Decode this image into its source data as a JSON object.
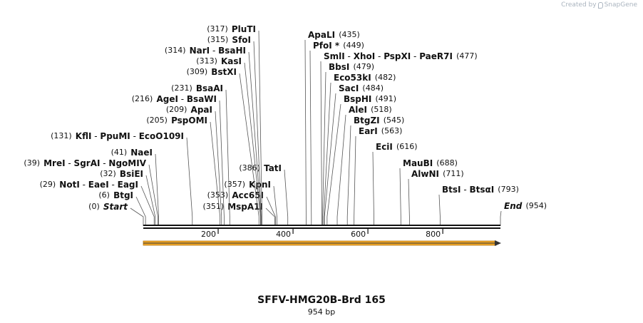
{
  "credit": {
    "prefix": "Created by",
    "brand": "SnapGene"
  },
  "map": {
    "title": "SFFV-HMG20B-Brd 165",
    "length_label": "954 bp",
    "length_bp": 954,
    "ticks": [
      200,
      400,
      600,
      800
    ],
    "feature_color": "#f0a728",
    "labels": [
      {
        "pos": "(0)",
        "names": [
          "Start"
        ],
        "italic": true,
        "sites": [
          0
        ]
      },
      {
        "pos": "(6)",
        "names": [
          "BtgI"
        ],
        "sites": [
          6
        ]
      },
      {
        "pos": "(29)",
        "names": [
          "NotI",
          "EaeI",
          "EagI"
        ],
        "sites": [
          29
        ]
      },
      {
        "pos": "(32)",
        "names": [
          "BsiEI"
        ],
        "sites": [
          32
        ]
      },
      {
        "pos": "(39)",
        "names": [
          "MreI",
          "SgrAI",
          "NgoMIV"
        ],
        "sites": [
          39
        ]
      },
      {
        "pos": "(41)",
        "names": [
          "NaeI"
        ],
        "sites": [
          41
        ]
      },
      {
        "pos": "(131)",
        "names": [
          "KflI",
          "PpuMI",
          "EcoO109I"
        ],
        "sites": [
          131
        ]
      },
      {
        "pos": "(205)",
        "names": [
          "PspOMI"
        ],
        "sites": [
          205
        ]
      },
      {
        "pos": "(209)",
        "names": [
          "ApaI"
        ],
        "sites": [
          209
        ]
      },
      {
        "pos": "(216)",
        "names": [
          "AgeI",
          "BsaWI"
        ],
        "sites": [
          216
        ]
      },
      {
        "pos": "(231)",
        "names": [
          "BsaAI"
        ],
        "sites": [
          231
        ]
      },
      {
        "pos": "(309)",
        "names": [
          "BstXI"
        ],
        "sites": [
          309
        ]
      },
      {
        "pos": "(313)",
        "names": [
          "KasI"
        ],
        "sites": [
          313
        ]
      },
      {
        "pos": "(314)",
        "names": [
          "NarI",
          "BsaHI"
        ],
        "sites": [
          314
        ]
      },
      {
        "pos": "(315)",
        "names": [
          "SfoI"
        ],
        "sites": [
          315
        ]
      },
      {
        "pos": "(317)",
        "names": [
          "PluTI"
        ],
        "sites": [
          317
        ]
      },
      {
        "pos": "(351)",
        "names": [
          "MspA1I"
        ],
        "sites": [
          351
        ]
      },
      {
        "pos": "(353)",
        "names": [
          "Acc65I"
        ],
        "sites": [
          353
        ]
      },
      {
        "pos": "(357)",
        "names": [
          "KpnI"
        ],
        "sites": [
          357
        ]
      },
      {
        "pos": "(386)",
        "names": [
          "TatI"
        ],
        "sites": [
          386
        ]
      },
      {
        "pos": "(435)",
        "names": [
          "ApaLI"
        ],
        "sites": [
          435
        ]
      },
      {
        "pos": "(449)",
        "names": [
          "PfoI *"
        ],
        "sites": [
          449
        ]
      },
      {
        "pos": "(477)",
        "names": [
          "SmlI",
          "XhoI",
          "PspXI",
          "PaeR7I"
        ],
        "sites": [
          477
        ]
      },
      {
        "pos": "(479)",
        "names": [
          "BbsI"
        ],
        "sites": [
          479
        ]
      },
      {
        "pos": "(482)",
        "names": [
          "Eco53kI"
        ],
        "sites": [
          482
        ]
      },
      {
        "pos": "(484)",
        "names": [
          "SacI"
        ],
        "sites": [
          484
        ]
      },
      {
        "pos": "(491)",
        "names": [
          "BspHI"
        ],
        "sites": [
          491
        ]
      },
      {
        "pos": "(518)",
        "names": [
          "AleI"
        ],
        "sites": [
          518
        ]
      },
      {
        "pos": "(545)",
        "names": [
          "BtgZI"
        ],
        "sites": [
          545
        ]
      },
      {
        "pos": "(563)",
        "names": [
          "EarI"
        ],
        "sites": [
          563
        ]
      },
      {
        "pos": "(616)",
        "names": [
          "EciI"
        ],
        "sites": [
          616
        ]
      },
      {
        "pos": "(688)",
        "names": [
          "MauBI"
        ],
        "sites": [
          688
        ]
      },
      {
        "pos": "(711)",
        "names": [
          "AlwNI"
        ],
        "sites": [
          711
        ]
      },
      {
        "pos": "(793)",
        "names": [
          "BtsI",
          "BtsαI"
        ],
        "sites": [
          793
        ]
      },
      {
        "pos": "(954)",
        "names": [
          "End"
        ],
        "italic": true,
        "sites": [
          954
        ]
      }
    ]
  }
}
